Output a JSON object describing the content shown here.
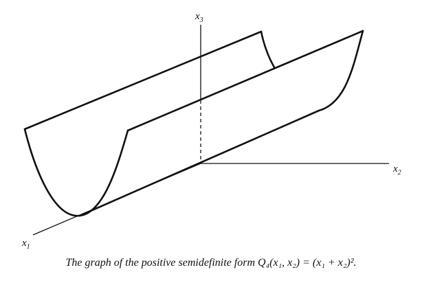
{
  "figure": {
    "axes": {
      "x1": {
        "base": "x",
        "sub": "1"
      },
      "x2": {
        "base": "x",
        "sub": "2"
      },
      "x3": {
        "base": "x",
        "sub": "3"
      }
    },
    "caption": "The graph of the positive semidefinite form Q₄(x₁, x₂) = (x₁ + x₂)²."
  }
}
